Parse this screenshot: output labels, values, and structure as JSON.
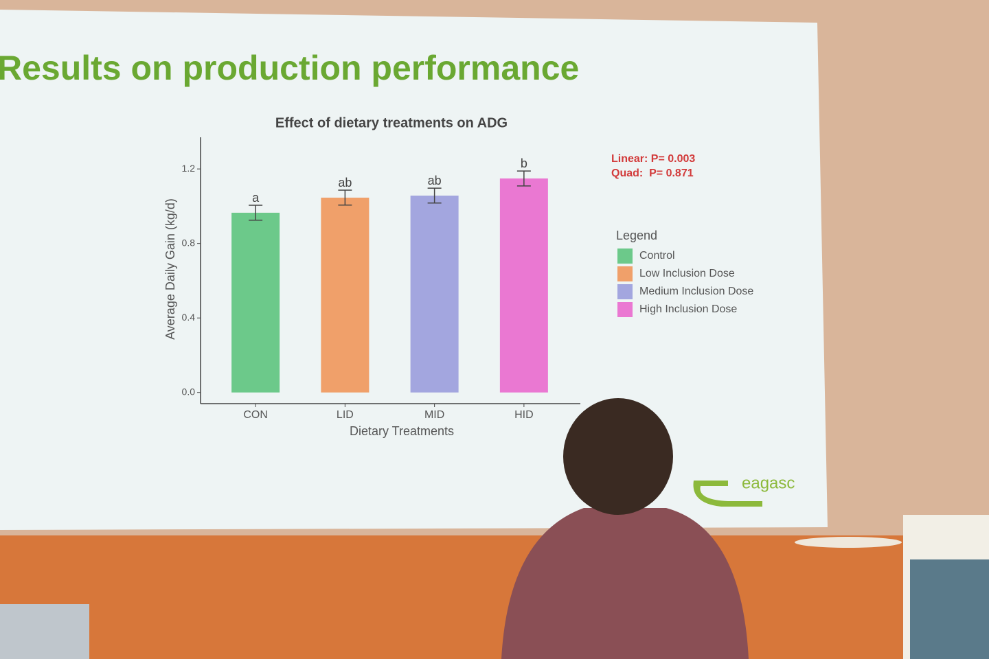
{
  "slide_title": "Results on production performance",
  "logo": "eagasc",
  "chart_data": {
    "type": "bar",
    "title": "Effect of dietary treatments on ADG",
    "x_label": "Dietary Treatments",
    "y_label": "Average Daily Gain (kg/d)",
    "categories": [
      "CON",
      "LID",
      "MID",
      "HID"
    ],
    "values": [
      0.965,
      1.046,
      1.057,
      1.149
    ],
    "errors": [
      0.04,
      0.04,
      0.04,
      0.04
    ],
    "letters": [
      "a",
      "ab",
      "ab",
      "b"
    ],
    "colors": [
      "#6cc98a",
      "#f0a06a",
      "#a3a6df",
      "#ea78d2"
    ],
    "ylim": [
      -0.06,
      1.37
    ],
    "yticks": [
      {
        "value": 0,
        "label": "0.0"
      },
      0.4,
      0.8,
      1.2
    ],
    "grid": false,
    "annotations": [
      "Linear: P= 0.003",
      "Quad:  P= 0.871"
    ],
    "legend": {
      "title": "Legend",
      "entries": [
        "Control",
        "Low Inclusion Dose",
        "Medium Inclusion Dose",
        "High Inclusion Dose"
      ]
    }
  }
}
